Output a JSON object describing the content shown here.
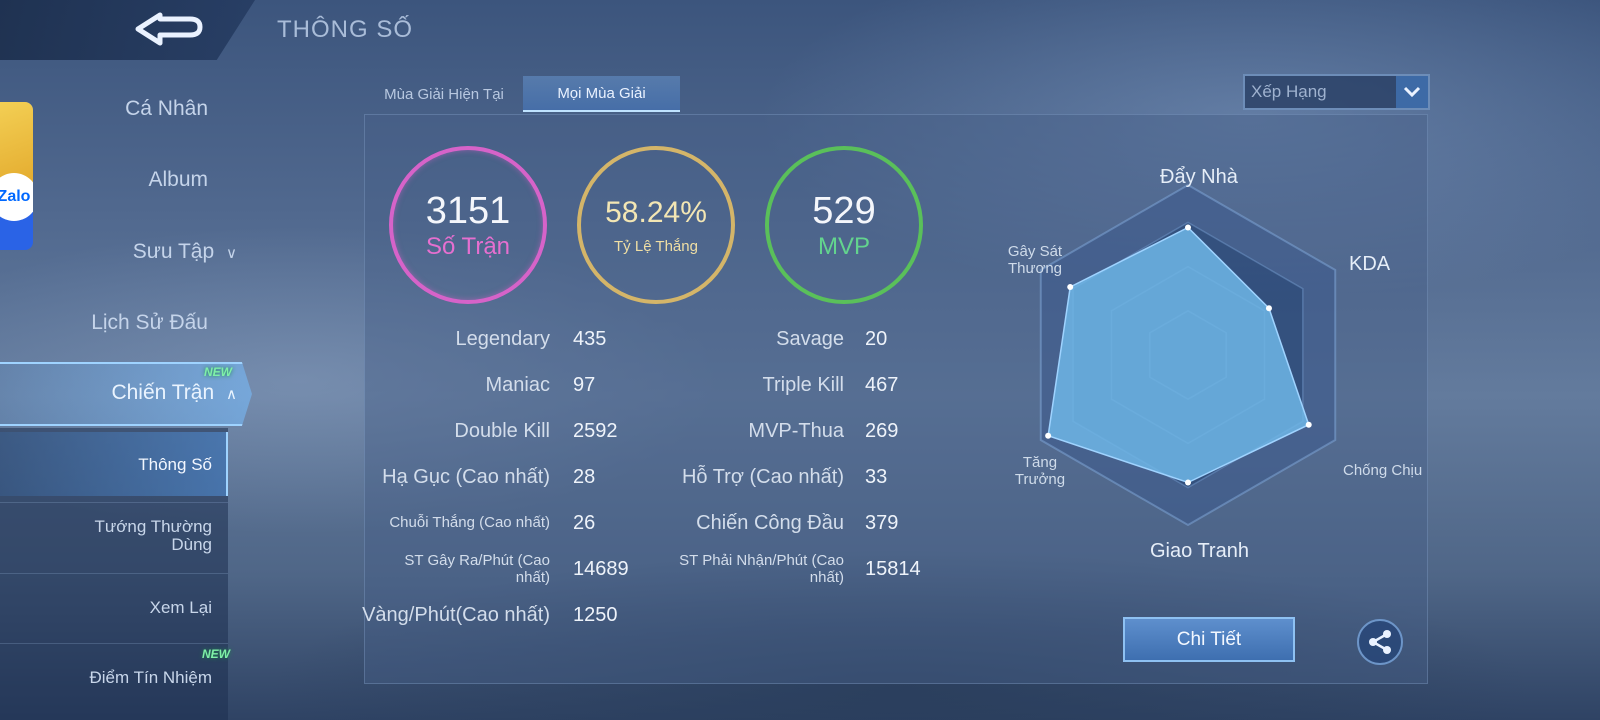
{
  "header": {
    "title": "THÔNG SỐ"
  },
  "zalo": {
    "label": "Zalo"
  },
  "sidebar": {
    "items": [
      {
        "label": "Cá Nhân"
      },
      {
        "label": "Album"
      },
      {
        "label": "Sưu Tập"
      },
      {
        "label": "Lịch Sử Đấu"
      },
      {
        "label": "Chiến Trận",
        "badge": "NEW"
      }
    ],
    "sub_items": [
      {
        "label": "Thông Số"
      },
      {
        "label": "Tướng Thường Dùng"
      },
      {
        "label": "Xem Lại"
      },
      {
        "label": "Điểm Tín Nhiệm",
        "badge": "NEW"
      }
    ]
  },
  "tabs": [
    {
      "label": "Mùa Giải Hiện Tại"
    },
    {
      "label": "Mọi Mùa Giải"
    }
  ],
  "dropdown": {
    "selected": "Xếp Hạng"
  },
  "rings": {
    "matches": {
      "value": "3151",
      "label": "Số Trận"
    },
    "winrate": {
      "value": "58.24%",
      "label": "Tỷ Lệ Thắng"
    },
    "mvp": {
      "value": "529",
      "label": "MVP"
    }
  },
  "stats_left": [
    {
      "label": "Legendary",
      "value": "435"
    },
    {
      "label": "Maniac",
      "value": "97"
    },
    {
      "label": "Double Kill",
      "value": "2592"
    },
    {
      "label": "Hạ Gục (Cao nhất)",
      "value": "28"
    },
    {
      "label": "Chuỗi Thắng (Cao nhất)",
      "value": "26"
    },
    {
      "label": "ST Gây Ra/Phút (Cao nhất)",
      "value": "14689"
    },
    {
      "label": "Vàng/Phút(Cao nhất)",
      "value": "1250"
    }
  ],
  "stats_right": [
    {
      "label": "Savage",
      "value": "20"
    },
    {
      "label": "Triple Kill",
      "value": "467"
    },
    {
      "label": "MVP-Thua",
      "value": "269"
    },
    {
      "label": "Hỗ Trợ (Cao nhất)",
      "value": "33"
    },
    {
      "label": "Chiến Công Đầu",
      "value": "379"
    },
    {
      "label": "ST Phải Nhận/Phút (Cao nhất)",
      "value": "15814"
    }
  ],
  "radar": {
    "axes": [
      "Đẩy Nhà",
      "KDA",
      "Chống Chịu",
      "Giao Tranh",
      "Tăng Trưởng",
      "Gây Sát Thương"
    ],
    "values": [
      0.75,
      0.55,
      0.82,
      0.75,
      0.95,
      0.8
    ]
  },
  "buttons": {
    "detail": "Chi Tiết"
  },
  "colors": {
    "matches_ring": "#d663c9",
    "winrate_ring": "#d4b569",
    "mvp_ring": "#5ac05a",
    "radar_fill": "#6fb6e6"
  }
}
